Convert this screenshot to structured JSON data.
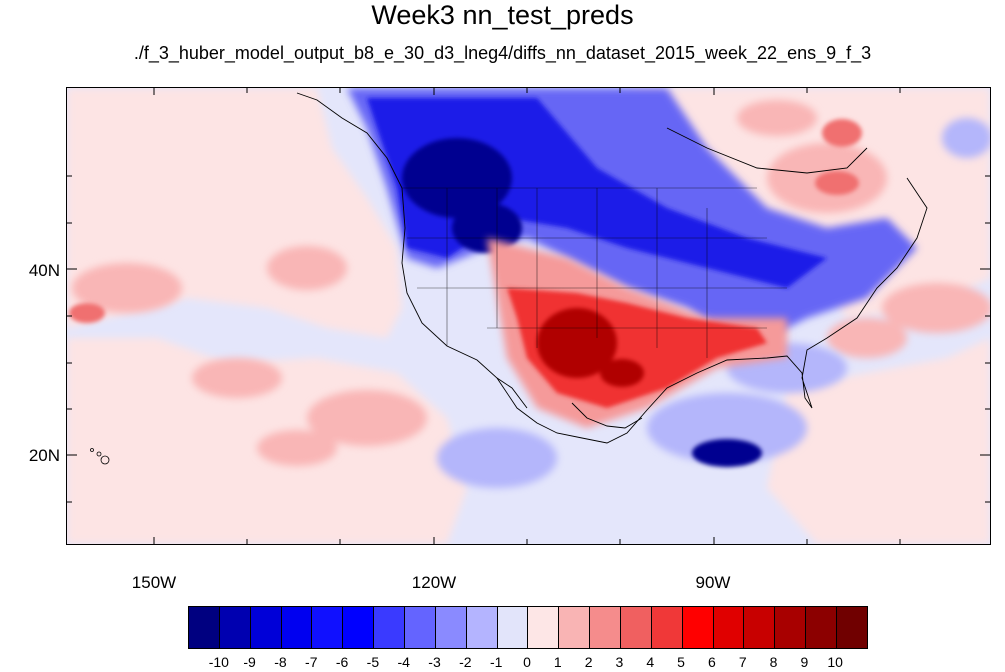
{
  "title": "Week3 nn_test_preds",
  "subtitle": "./f_3_huber_model_output_b8_e_30_d3_lneg4/diffs_nn_dataset_2015_week_22_ens_9_f_3",
  "axes": {
    "y_labels": [
      "40N",
      "20N"
    ],
    "x_labels": [
      "150W",
      "120W",
      "90W"
    ]
  },
  "colorbar": {
    "colors": [
      "#000080",
      "#0000b0",
      "#0000d8",
      "#0000f0",
      "#1010ff",
      "#0000ff",
      "#3a3aff",
      "#6464ff",
      "#8a8aff",
      "#b4b4ff",
      "#e2e4fa",
      "#fde6e6",
      "#f9b4b4",
      "#f58c8c",
      "#f06060",
      "#f03838",
      "#ff0000",
      "#e00000",
      "#c80000",
      "#a80000",
      "#8c0000",
      "#700000"
    ],
    "labels": [
      "-10",
      "-9",
      "-8",
      "-7",
      "-6",
      "-5",
      "-4",
      "-3",
      "-2",
      "-1",
      "0",
      "1",
      "2",
      "3",
      "4",
      "5",
      "6",
      "7",
      "8",
      "9",
      "10"
    ]
  }
}
